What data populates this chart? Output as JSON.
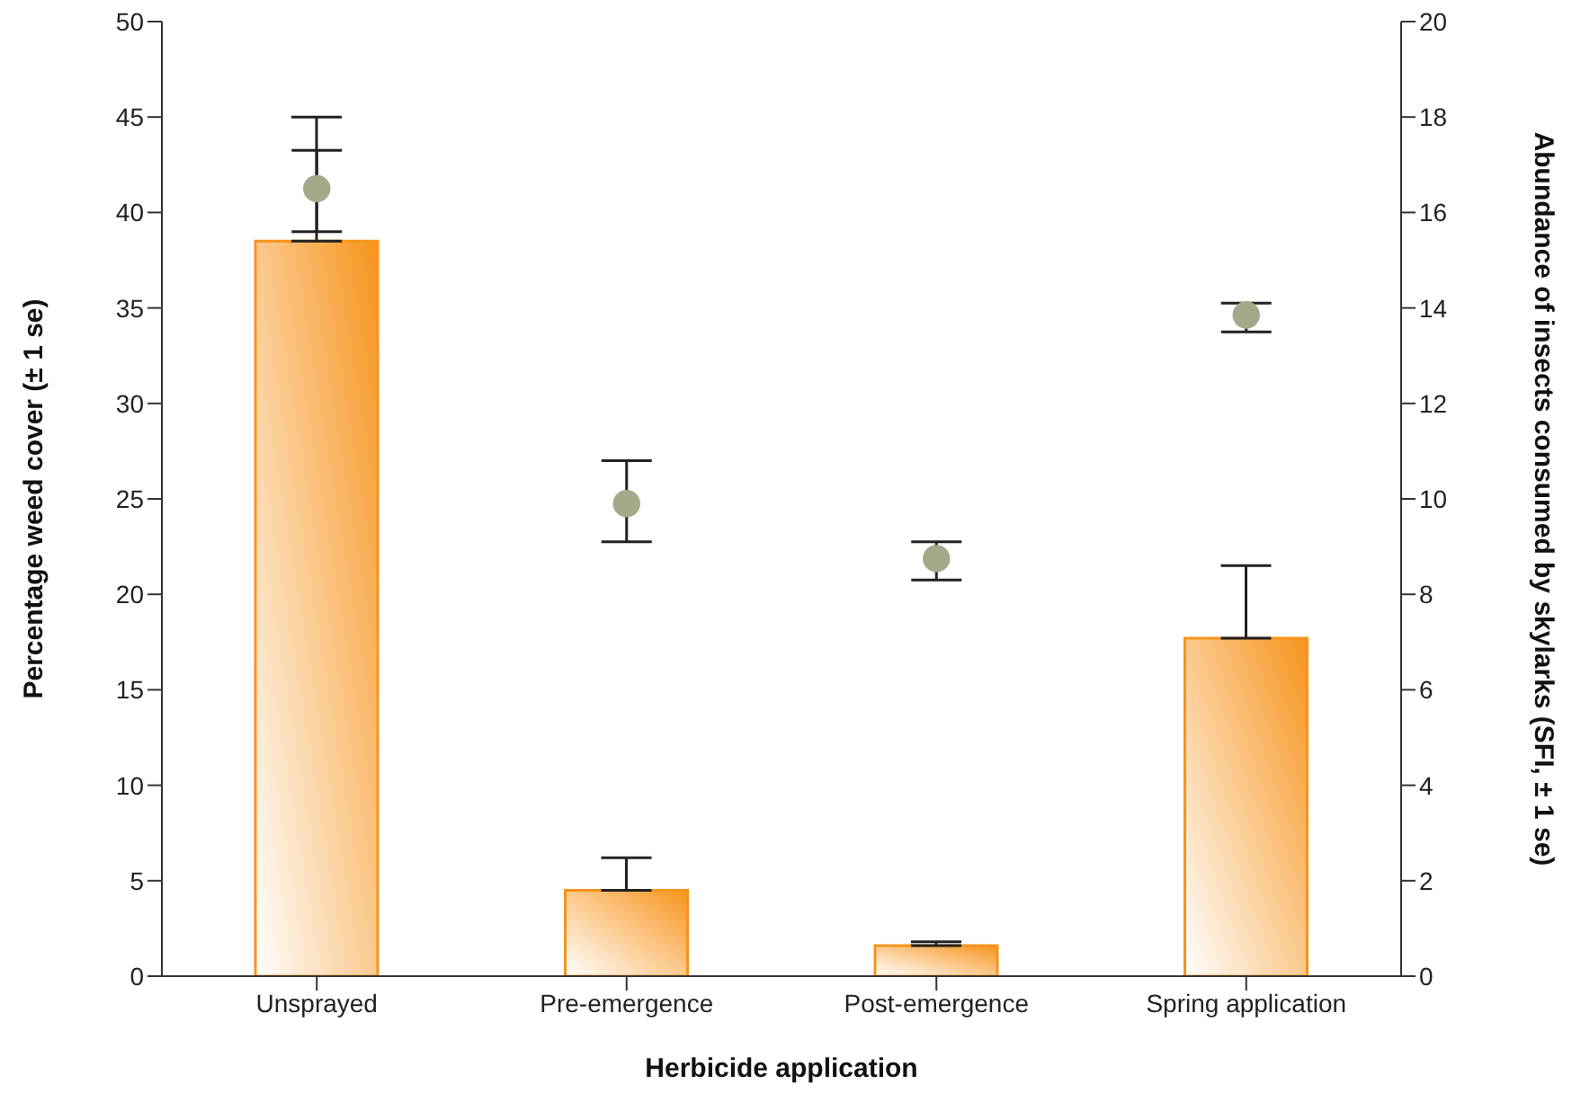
{
  "chart_data": {
    "type": "bar",
    "xlabel": "Herbicide application",
    "ylabel": "Percentage weed cover (± 1 se)",
    "y2label": "Abundance of insects consumed by skylarks (SFI, ± 1 se)",
    "categories": [
      "Unsprayed",
      "Pre-emergence",
      "Post-emergence",
      "Spring application"
    ],
    "series": [
      {
        "color": "#f7941d",
        "values": [
          38.5,
          4.5,
          1.6,
          17.7
        ],
        "errors": [
          [
            38.5,
            45.0
          ],
          [
            4.5,
            6.2
          ],
          [
            1.6,
            1.8
          ],
          [
            17.7,
            21.5
          ]
        ]
      },
      {
        "type": "scatter",
        "axis": "y2",
        "color": "#a4a98a",
        "values": [
          16.5,
          9.9,
          8.75,
          13.85
        ],
        "errors": [
          [
            15.6,
            17.3
          ],
          [
            9.1,
            10.8
          ],
          [
            8.3,
            9.1
          ],
          [
            13.5,
            14.1
          ]
        ]
      }
    ],
    "ylim": [
      0,
      50
    ],
    "yticks": [
      0,
      5,
      10,
      15,
      20,
      25,
      30,
      35,
      40,
      45,
      50
    ],
    "y2lim": [
      0,
      20
    ],
    "y2ticks": [
      0,
      2,
      4,
      6,
      8,
      10,
      12,
      14,
      16,
      18,
      20
    ],
    "grid": false,
    "legend": false,
    "marker": "circle"
  }
}
